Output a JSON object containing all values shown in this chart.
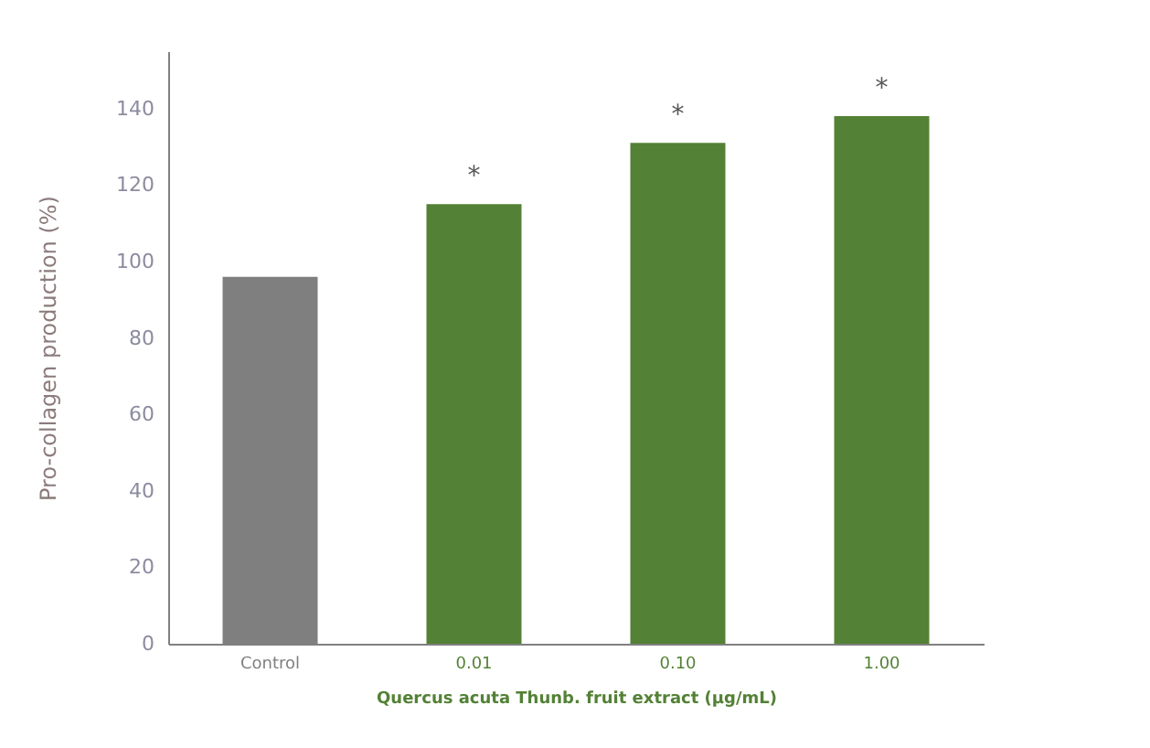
{
  "chart_data": {
    "type": "bar",
    "ylabel": "Pro-collagen production (%)",
    "xlabel": "Quercus acuta Thunb. fruit extract (μg/mL)",
    "categories": [
      "Control",
      "0.01",
      "0.10",
      "1.00"
    ],
    "values": [
      96,
      115,
      131,
      138
    ],
    "colors": [
      "#7f7f7f",
      "#538135",
      "#538135",
      "#538135"
    ],
    "ylim": [
      0,
      155
    ],
    "yticks": [
      0,
      20,
      40,
      60,
      80,
      100,
      120,
      140
    ],
    "grid": false,
    "annotations": [
      "*",
      "*",
      "*"
    ]
  }
}
